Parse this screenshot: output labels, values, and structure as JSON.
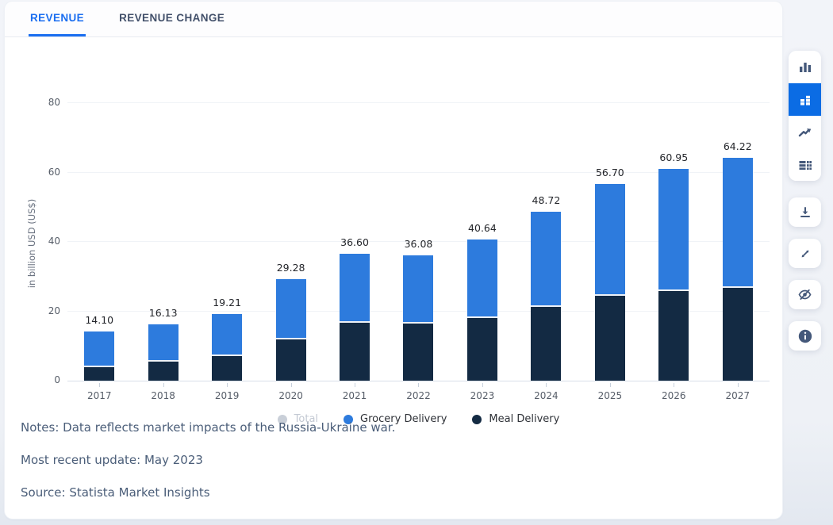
{
  "tabs": {
    "revenue": {
      "label": "REVENUE",
      "active": true
    },
    "revenue_change": {
      "label": "REVENUE CHANGE",
      "active": false
    }
  },
  "chart_data": {
    "type": "bar",
    "stacked": true,
    "title": "",
    "xlabel": "",
    "ylabel": "in billion USD (US$)",
    "ylim": [
      0,
      80
    ],
    "yticks": [
      0,
      20,
      40,
      60,
      80
    ],
    "grid": true,
    "legend_position": "bottom",
    "categories": [
      "2017",
      "2018",
      "2019",
      "2020",
      "2021",
      "2022",
      "2023",
      "2024",
      "2025",
      "2026",
      "2027"
    ],
    "series": [
      {
        "name": "Meal Delivery",
        "color": "#132a43",
        "values": [
          4.0,
          5.4,
          7.0,
          12.0,
          16.6,
          16.45,
          18.0,
          21.2,
          24.5,
          25.9,
          26.7
        ]
      },
      {
        "name": "Grocery Delivery",
        "color": "#2d7bdd",
        "values": [
          10.1,
          10.73,
          12.21,
          17.28,
          20.0,
          19.63,
          22.64,
          27.52,
          32.2,
          35.05,
          37.52
        ]
      }
    ],
    "totals": [
      "14.10",
      "16.13",
      "19.21",
      "29.28",
      "36.60",
      "36.08",
      "40.64",
      "48.72",
      "56.70",
      "60.95",
      "64.22"
    ],
    "legend": [
      {
        "label": "Total",
        "color": "#c9cfd8",
        "disabled": true
      },
      {
        "label": "Grocery Delivery",
        "color": "#2d7bdd",
        "disabled": false
      },
      {
        "label": "Meal Delivery",
        "color": "#142b43",
        "disabled": false
      }
    ]
  },
  "notes": {
    "line1": "Notes: Data reflects market impacts of the Russia-Ukraine war.",
    "line2": "Most recent update: May 2023",
    "line3": "Source: Statista Market Insights"
  },
  "sidebar": {
    "buttons": [
      "bar-chart",
      "stacked-bar-chart (selected)",
      "line-chart",
      "table-view",
      "download",
      "fullscreen",
      "hide-values",
      "info"
    ],
    "selected_color": "#0b6ce4",
    "icon_color": "#44587a"
  },
  "colors": {
    "accent_blue": "#1a6ef0",
    "bar_blue": "#2d7bdd",
    "bar_navy": "#132a43",
    "notes_text": "#4b5e79"
  }
}
